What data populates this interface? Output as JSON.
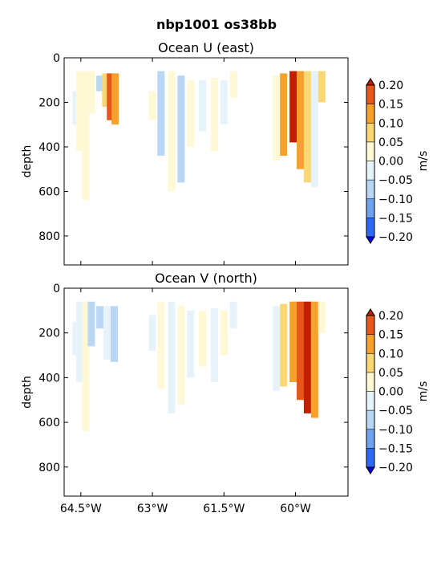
{
  "figure_title": "nbp1001 os38bb",
  "chart_data": [
    {
      "type": "heatmap",
      "title": "Ocean U (east)",
      "ylabel": "depth",
      "xlabel": "",
      "ylim": [
        930,
        0
      ],
      "xlim": [
        -64.85,
        -58.9
      ],
      "y_ticks": [
        0,
        200,
        400,
        600,
        800
      ],
      "y_tick_labels": [
        "0",
        "200",
        "400",
        "600",
        "800"
      ],
      "x_ticks": [
        -64.5,
        -63.0,
        -61.5,
        -60.0
      ],
      "x_tick_labels": [
        "",
        "",
        "",
        ""
      ],
      "colorbar": {
        "label": "m/s",
        "levels": [
          -0.2,
          -0.15,
          -0.1,
          -0.05,
          0.0,
          0.05,
          0.1,
          0.15,
          0.2
        ],
        "tick_labels": [
          "−0.20",
          "−0.15",
          "−0.10",
          "−0.05",
          "0.00",
          "0.05",
          "0.10",
          "0.15",
          "0.20"
        ],
        "colors": [
          "#0000ff",
          "#2f6af5",
          "#6fa3f0",
          "#b9d7f4",
          "#e7f3fb",
          "#fff8d4",
          "#fbd775",
          "#f5a12c",
          "#e8571a",
          "#c21f00"
        ],
        "extend": "both"
      },
      "profiles": [
        {
          "x": -64.6,
          "top": 150,
          "bottom": 300,
          "value": -0.03
        },
        {
          "x": -64.52,
          "top": 60,
          "bottom": 420,
          "value": 0.02
        },
        {
          "x": -64.4,
          "top": 60,
          "bottom": 640,
          "value": 0.01
        },
        {
          "x": -64.28,
          "top": 60,
          "bottom": 250,
          "value": 0.03
        },
        {
          "x": -64.1,
          "top": 80,
          "bottom": 150,
          "value": -0.06
        },
        {
          "x": -63.98,
          "top": 70,
          "bottom": 220,
          "value": 0.09
        },
        {
          "x": -63.88,
          "top": 70,
          "bottom": 280,
          "value": 0.17
        },
        {
          "x": -63.78,
          "top": 70,
          "bottom": 300,
          "value": 0.12
        },
        {
          "x": -63.0,
          "top": 150,
          "bottom": 280,
          "value": 0.02
        },
        {
          "x": -62.82,
          "top": 60,
          "bottom": 440,
          "value": -0.07
        },
        {
          "x": -62.6,
          "top": 60,
          "bottom": 600,
          "value": 0.03
        },
        {
          "x": -62.4,
          "top": 80,
          "bottom": 560,
          "value": -0.06
        },
        {
          "x": -62.2,
          "top": 100,
          "bottom": 400,
          "value": 0.04
        },
        {
          "x": -61.95,
          "top": 100,
          "bottom": 330,
          "value": -0.03
        },
        {
          "x": -61.7,
          "top": 90,
          "bottom": 420,
          "value": 0.03
        },
        {
          "x": -61.5,
          "top": 100,
          "bottom": 300,
          "value": -0.04
        },
        {
          "x": -61.3,
          "top": 60,
          "bottom": 180,
          "value": 0.02
        },
        {
          "x": -60.4,
          "top": 80,
          "bottom": 460,
          "value": 0.03
        },
        {
          "x": -60.25,
          "top": 70,
          "bottom": 440,
          "value": 0.12
        },
        {
          "x": -60.05,
          "top": 60,
          "bottom": 380,
          "value": 0.21
        },
        {
          "x": -59.9,
          "top": 60,
          "bottom": 500,
          "value": 0.1
        },
        {
          "x": -59.75,
          "top": 60,
          "bottom": 560,
          "value": 0.08
        },
        {
          "x": -59.6,
          "top": 60,
          "bottom": 580,
          "value": -0.04
        },
        {
          "x": -59.45,
          "top": 60,
          "bottom": 200,
          "value": 0.05
        }
      ]
    },
    {
      "type": "heatmap",
      "title": "Ocean V (north)",
      "ylabel": "depth",
      "xlabel": "",
      "ylim": [
        930,
        0
      ],
      "xlim": [
        -64.85,
        -58.9
      ],
      "y_ticks": [
        0,
        200,
        400,
        600,
        800
      ],
      "y_tick_labels": [
        "0",
        "200",
        "400",
        "600",
        "800"
      ],
      "x_ticks": [
        -64.5,
        -63.0,
        -61.5,
        -60.0
      ],
      "x_tick_labels": [
        "64.5°W",
        "63°W",
        "61.5°W",
        "60°W"
      ],
      "colorbar": {
        "label": "m/s",
        "levels": [
          -0.2,
          -0.15,
          -0.1,
          -0.05,
          0.0,
          0.05,
          0.1,
          0.15,
          0.2
        ],
        "tick_labels": [
          "−0.20",
          "−0.15",
          "−0.10",
          "−0.05",
          "0.00",
          "0.05",
          "0.10",
          "0.15",
          "0.20"
        ],
        "colors": [
          "#0000ff",
          "#2f6af5",
          "#6fa3f0",
          "#b9d7f4",
          "#e7f3fb",
          "#fff8d4",
          "#fbd775",
          "#f5a12c",
          "#e8571a",
          "#c21f00"
        ],
        "extend": "both"
      },
      "profiles": [
        {
          "x": -64.6,
          "top": 150,
          "bottom": 300,
          "value": -0.03
        },
        {
          "x": -64.52,
          "top": 60,
          "bottom": 420,
          "value": -0.03
        },
        {
          "x": -64.4,
          "top": 60,
          "bottom": 640,
          "value": 0.04
        },
        {
          "x": -64.28,
          "top": 60,
          "bottom": 260,
          "value": -0.08
        },
        {
          "x": -64.1,
          "top": 80,
          "bottom": 180,
          "value": -0.09
        },
        {
          "x": -63.95,
          "top": 80,
          "bottom": 320,
          "value": -0.04
        },
        {
          "x": -63.8,
          "top": 80,
          "bottom": 330,
          "value": -0.07
        },
        {
          "x": -63.0,
          "top": 120,
          "bottom": 280,
          "value": -0.03
        },
        {
          "x": -62.82,
          "top": 60,
          "bottom": 450,
          "value": 0.03
        },
        {
          "x": -62.6,
          "top": 60,
          "bottom": 560,
          "value": -0.04
        },
        {
          "x": -62.4,
          "top": 80,
          "bottom": 520,
          "value": 0.04
        },
        {
          "x": -62.2,
          "top": 100,
          "bottom": 400,
          "value": -0.02
        },
        {
          "x": -61.95,
          "top": 100,
          "bottom": 350,
          "value": 0.02
        },
        {
          "x": -61.7,
          "top": 90,
          "bottom": 420,
          "value": -0.02
        },
        {
          "x": -61.5,
          "top": 100,
          "bottom": 300,
          "value": 0.03
        },
        {
          "x": -61.3,
          "top": 60,
          "bottom": 180,
          "value": -0.02
        },
        {
          "x": -60.4,
          "top": 80,
          "bottom": 460,
          "value": -0.04
        },
        {
          "x": -60.25,
          "top": 70,
          "bottom": 440,
          "value": 0.07
        },
        {
          "x": -60.05,
          "top": 60,
          "bottom": 420,
          "value": 0.1
        },
        {
          "x": -59.9,
          "top": 60,
          "bottom": 500,
          "value": 0.17
        },
        {
          "x": -59.75,
          "top": 60,
          "bottom": 560,
          "value": 0.2
        },
        {
          "x": -59.6,
          "top": 60,
          "bottom": 580,
          "value": 0.12
        },
        {
          "x": -59.45,
          "top": 60,
          "bottom": 200,
          "value": 0.03
        }
      ]
    }
  ]
}
